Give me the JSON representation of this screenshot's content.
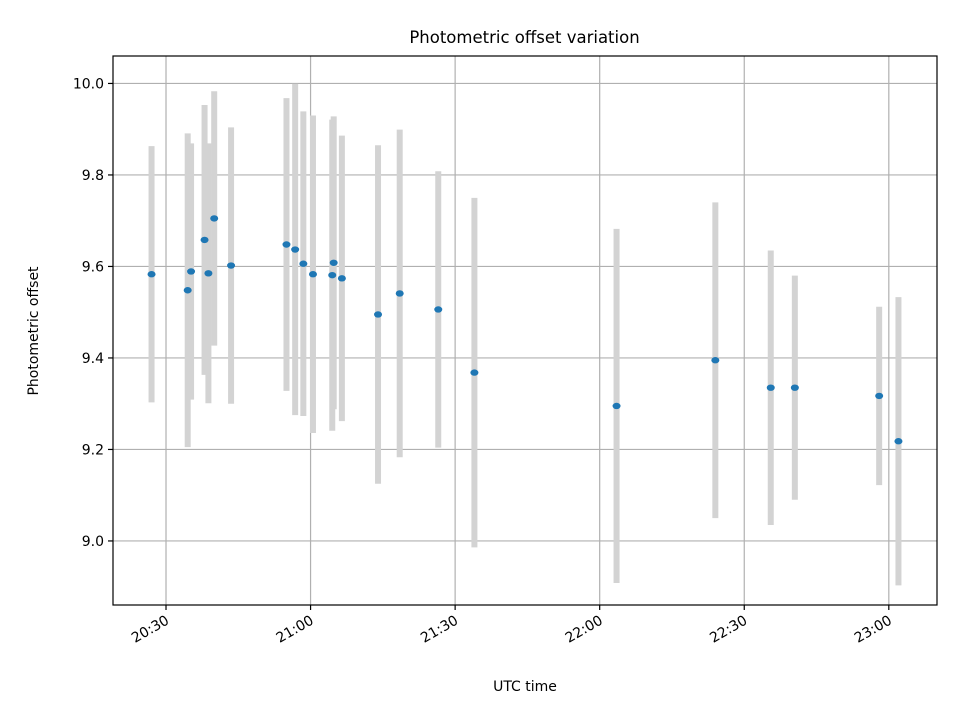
{
  "chart_data": {
    "type": "scatter",
    "title": "Photometric offset variation",
    "xlabel": "UTC time",
    "ylabel": "Photometric offset",
    "grid": true,
    "xlim": [
      "20:19",
      "23:10"
    ],
    "ylim": [
      8.86,
      10.06
    ],
    "x_ticks": [
      "20:30",
      "21:00",
      "21:30",
      "22:00",
      "22:30",
      "23:00"
    ],
    "y_ticks": [
      "9.0",
      "9.2",
      "9.4",
      "9.6",
      "9.8",
      "10.0"
    ],
    "colors": {
      "points": "#1f77b4",
      "error_bars": "#d3d3d3",
      "grid": "#b0b0b0"
    },
    "points": [
      {
        "x": "20:27",
        "y": 9.583,
        "err": 0.28
      },
      {
        "x": "20:34.5",
        "y": 9.548,
        "err": 0.343
      },
      {
        "x": "20:35.2",
        "y": 9.589,
        "err": 0.28
      },
      {
        "x": "20:38",
        "y": 9.658,
        "err": 0.295
      },
      {
        "x": "20:38.8",
        "y": 9.585,
        "err": 0.284
      },
      {
        "x": "20:40",
        "y": 9.705,
        "err": 0.278
      },
      {
        "x": "20:43.5",
        "y": 9.602,
        "err": 0.302
      },
      {
        "x": "20:55",
        "y": 9.648,
        "err": 0.32
      },
      {
        "x": "20:56.8",
        "y": 9.637,
        "err": 0.362
      },
      {
        "x": "20:58.5",
        "y": 9.606,
        "err": 0.333
      },
      {
        "x": "21:00.5",
        "y": 9.583,
        "err": 0.347
      },
      {
        "x": "21:04.5",
        "y": 9.581,
        "err": 0.34
      },
      {
        "x": "21:04.8",
        "y": 9.608,
        "err": 0.32
      },
      {
        "x": "21:06.5",
        "y": 9.574,
        "err": 0.312
      },
      {
        "x": "21:14",
        "y": 9.495,
        "err": 0.37
      },
      {
        "x": "21:18.5",
        "y": 9.541,
        "err": 0.358
      },
      {
        "x": "21:26.5",
        "y": 9.506,
        "err": 0.302
      },
      {
        "x": "21:34",
        "y": 9.368,
        "err": 0.382
      },
      {
        "x": "22:03.5",
        "y": 9.295,
        "err": 0.387
      },
      {
        "x": "22:24",
        "y": 9.395,
        "err": 0.345
      },
      {
        "x": "22:35.5",
        "y": 9.335,
        "err": 0.3
      },
      {
        "x": "22:40.5",
        "y": 9.335,
        "err": 0.245
      },
      {
        "x": "22:58",
        "y": 9.317,
        "err": 0.195
      },
      {
        "x": "23:02",
        "y": 9.218,
        "err": 0.315
      }
    ]
  }
}
